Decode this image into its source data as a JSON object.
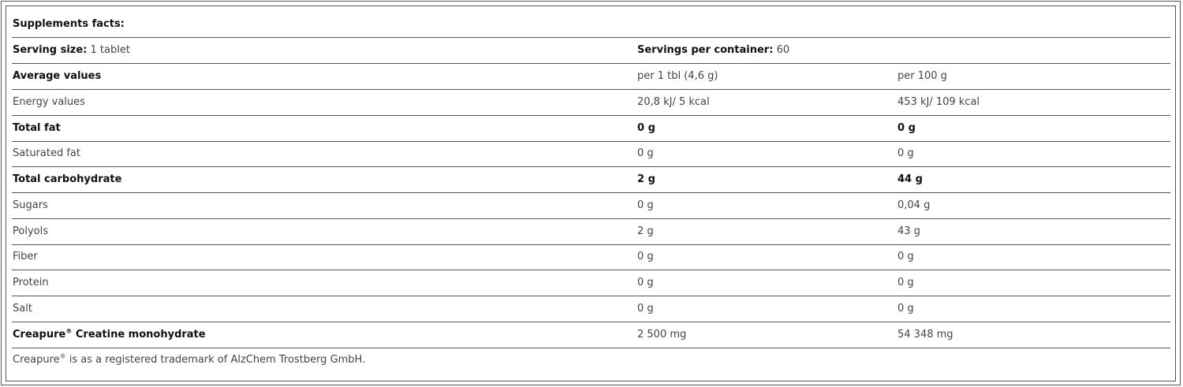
{
  "title": "Supplements facts:",
  "serving_size": {
    "label": "Serving size:",
    "value": "1 tablet"
  },
  "servings_per_container": {
    "label": "Servings per container:",
    "value": "60"
  },
  "header": {
    "label": "Average values",
    "col1": "per 1 tbl (4,6 g)",
    "col2": "per 100 g"
  },
  "rows": [
    {
      "name": "Energy values",
      "per_tablet": "20,8 kJ/ 5 kcal",
      "per_100g": "453 kJ/ 109 kcal",
      "bold": false
    },
    {
      "name": "Total fat",
      "per_tablet": "0 g",
      "per_100g": "0 g",
      "bold": true
    },
    {
      "name": "Saturated fat",
      "per_tablet": "0 g",
      "per_100g": "0 g",
      "bold": false
    },
    {
      "name": "Total carbohydrate",
      "per_tablet": "2 g",
      "per_100g": "44 g",
      "bold": true
    },
    {
      "name": "Sugars",
      "per_tablet": "0 g",
      "per_100g": "0,04 g",
      "bold": false
    },
    {
      "name": "Polyols",
      "per_tablet": "2 g",
      "per_100g": "43 g",
      "bold": false
    },
    {
      "name": "Fiber",
      "per_tablet": "0 g",
      "per_100g": "0 g",
      "bold": false
    },
    {
      "name": "Protein",
      "per_tablet": "0 g",
      "per_100g": "0 g",
      "bold": false
    },
    {
      "name": "Salt",
      "per_tablet": "0 g",
      "per_100g": "0 g",
      "bold": false
    }
  ],
  "creatine": {
    "brand": "Creapure",
    "reg": "®",
    "name": " Creatine monohydrate",
    "per_tablet": "2 500 mg",
    "per_100g": "54 348 mg"
  },
  "footnote": {
    "brand": "Creapure",
    "reg": "®",
    "text": " is as a registered trademark of AlzChem Trostberg GmbH."
  }
}
